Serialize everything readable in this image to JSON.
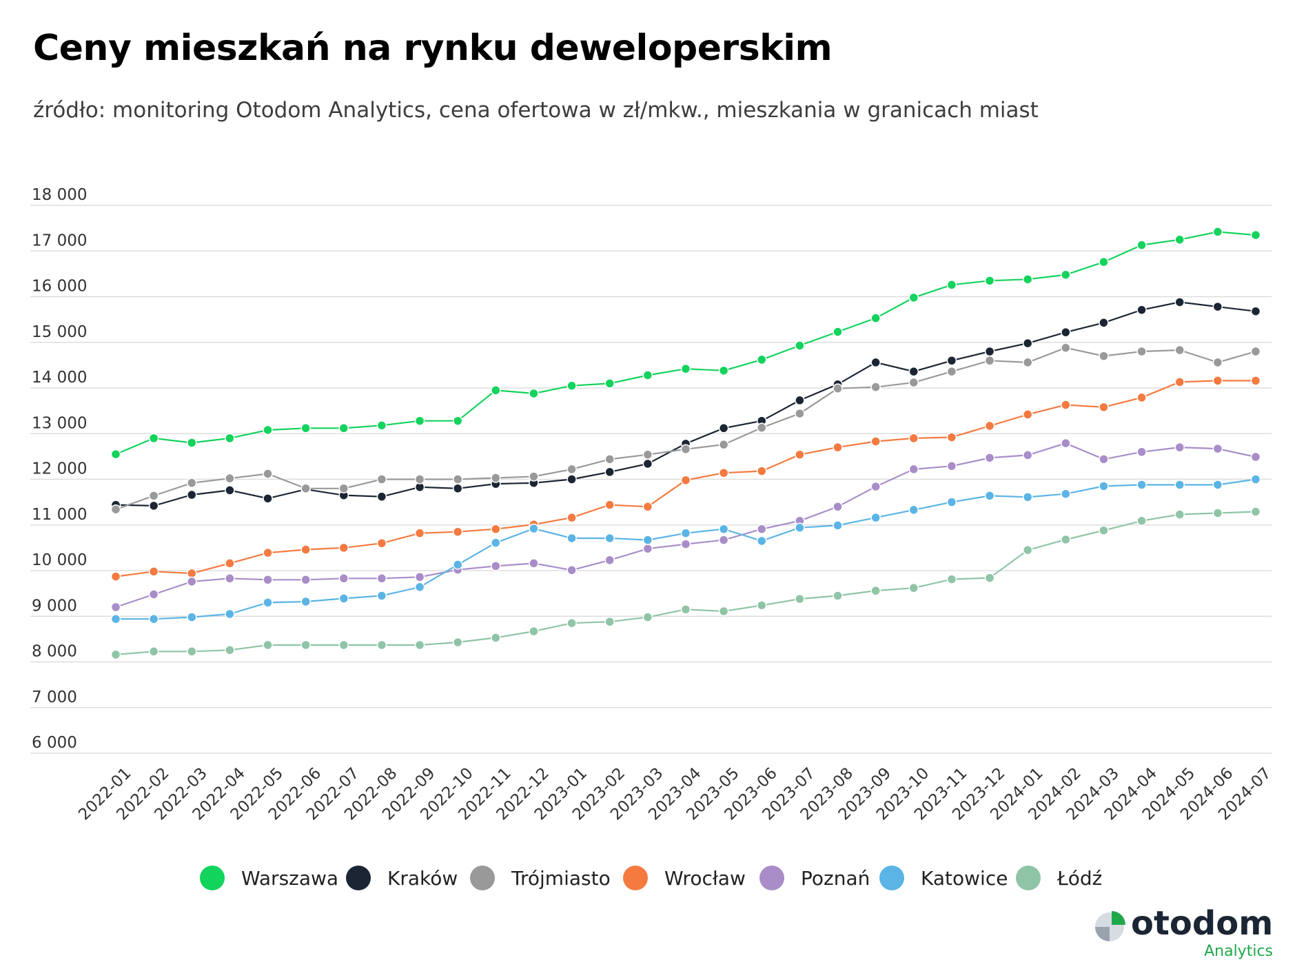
{
  "header": {
    "title": "Ceny mieszkań na rynku deweloperskim",
    "subtitle": "źródło: monitoring Otodom Analytics, cena ofertowa w zł/mkw., mieszkania w granicach miast"
  },
  "logo": {
    "word": "otodom",
    "sub": "Analytics",
    "color": "#1fa84a"
  },
  "chart_data": {
    "type": "line",
    "title": "Ceny mieszkań na rynku deweloperskim",
    "subtitle": "źródło: monitoring Otodom Analytics, cena ofertowa w zł/mkw., mieszkania w granicach miast",
    "xlabel": "",
    "ylabel": "",
    "ylim": [
      6000,
      18000
    ],
    "yticks": [
      6000,
      7000,
      8000,
      9000,
      10000,
      11000,
      12000,
      13000,
      14000,
      15000,
      16000,
      17000,
      18000
    ],
    "ytick_labels": [
      "6 000",
      "7 000",
      "8 000",
      "9 000",
      "10 000",
      "11 000",
      "12 000",
      "13 000",
      "14 000",
      "15 000",
      "16 000",
      "17 000",
      "18 000"
    ],
    "grid": "horizontal",
    "legend_position": "bottom",
    "categories": [
      "2022-01",
      "2022-02",
      "2022-03",
      "2022-04",
      "2022-05",
      "2022-06",
      "2022-07",
      "2022-08",
      "2022-09",
      "2022-10",
      "2022-11",
      "2022-12",
      "2023-01",
      "2023-02",
      "2023-03",
      "2023-04",
      "2023-05",
      "2023-06",
      "2023-07",
      "2023-08",
      "2023-09",
      "2023-10",
      "2023-11",
      "2023-12",
      "2024-01",
      "2024-02",
      "2024-03",
      "2024-04",
      "2024-05",
      "2024-06",
      "2024-07"
    ],
    "series": [
      {
        "name": "Warszawa",
        "color": "#12d35c",
        "values": [
          12550,
          12900,
          12800,
          12900,
          13080,
          13120,
          13120,
          13180,
          13280,
          13280,
          13950,
          13880,
          14050,
          14100,
          14280,
          14420,
          14380,
          14620,
          14930,
          15230,
          15530,
          15980,
          16260,
          16350,
          16380,
          16480,
          16760,
          17130,
          17250,
          17420,
          17350
        ]
      },
      {
        "name": "Kraków",
        "color": "#1b2533",
        "values": [
          11440,
          11420,
          11660,
          11760,
          11580,
          11780,
          11650,
          11620,
          11830,
          11800,
          11900,
          11920,
          12000,
          12160,
          12340,
          12780,
          13120,
          13280,
          13730,
          14080,
          14560,
          14360,
          14600,
          14800,
          14980,
          15220,
          15430,
          15710,
          15880,
          15780,
          15680
        ]
      },
      {
        "name": "Trójmiasto",
        "color": "#999999",
        "values": [
          11340,
          11640,
          11920,
          12020,
          12120,
          11800,
          11800,
          12000,
          12000,
          12000,
          12030,
          12060,
          12220,
          12440,
          12540,
          12660,
          12760,
          13130,
          13440,
          13990,
          14020,
          14120,
          14360,
          14600,
          14560,
          14880,
          14700,
          14800,
          14830,
          14560,
          14800
        ]
      },
      {
        "name": "Wrocław",
        "color": "#f47a40",
        "values": [
          9870,
          9980,
          9940,
          10160,
          10390,
          10460,
          10500,
          10600,
          10820,
          10850,
          10910,
          11010,
          11160,
          11440,
          11400,
          11980,
          12140,
          12180,
          12540,
          12700,
          12830,
          12900,
          12920,
          13170,
          13420,
          13630,
          13580,
          13790,
          14130,
          14160,
          14160
        ]
      },
      {
        "name": "Poznań",
        "color": "#a88dc9",
        "values": [
          9200,
          9480,
          9760,
          9830,
          9800,
          9800,
          9830,
          9830,
          9860,
          10020,
          10100,
          10160,
          10010,
          10230,
          10480,
          10580,
          10670,
          10910,
          11090,
          11400,
          11840,
          12220,
          12290,
          12470,
          12530,
          12790,
          12440,
          12600,
          12700,
          12670,
          12490
        ]
      },
      {
        "name": "Katowice",
        "color": "#5ab4e5",
        "values": [
          8940,
          8940,
          8980,
          9050,
          9300,
          9320,
          9390,
          9450,
          9640,
          10130,
          10610,
          10920,
          10710,
          10710,
          10670,
          10820,
          10910,
          10650,
          10940,
          10990,
          11160,
          11330,
          11500,
          11640,
          11610,
          11680,
          11850,
          11880,
          11880,
          11880,
          12000
        ]
      },
      {
        "name": "Łódź",
        "color": "#8fc4a6",
        "values": [
          8160,
          8230,
          8230,
          8260,
          8370,
          8370,
          8370,
          8370,
          8370,
          8430,
          8530,
          8670,
          8850,
          8880,
          8980,
          9150,
          9110,
          9240,
          9380,
          9450,
          9560,
          9620,
          9810,
          9840,
          10450,
          10680,
          10880,
          11090,
          11230,
          11260,
          11290
        ]
      }
    ]
  }
}
